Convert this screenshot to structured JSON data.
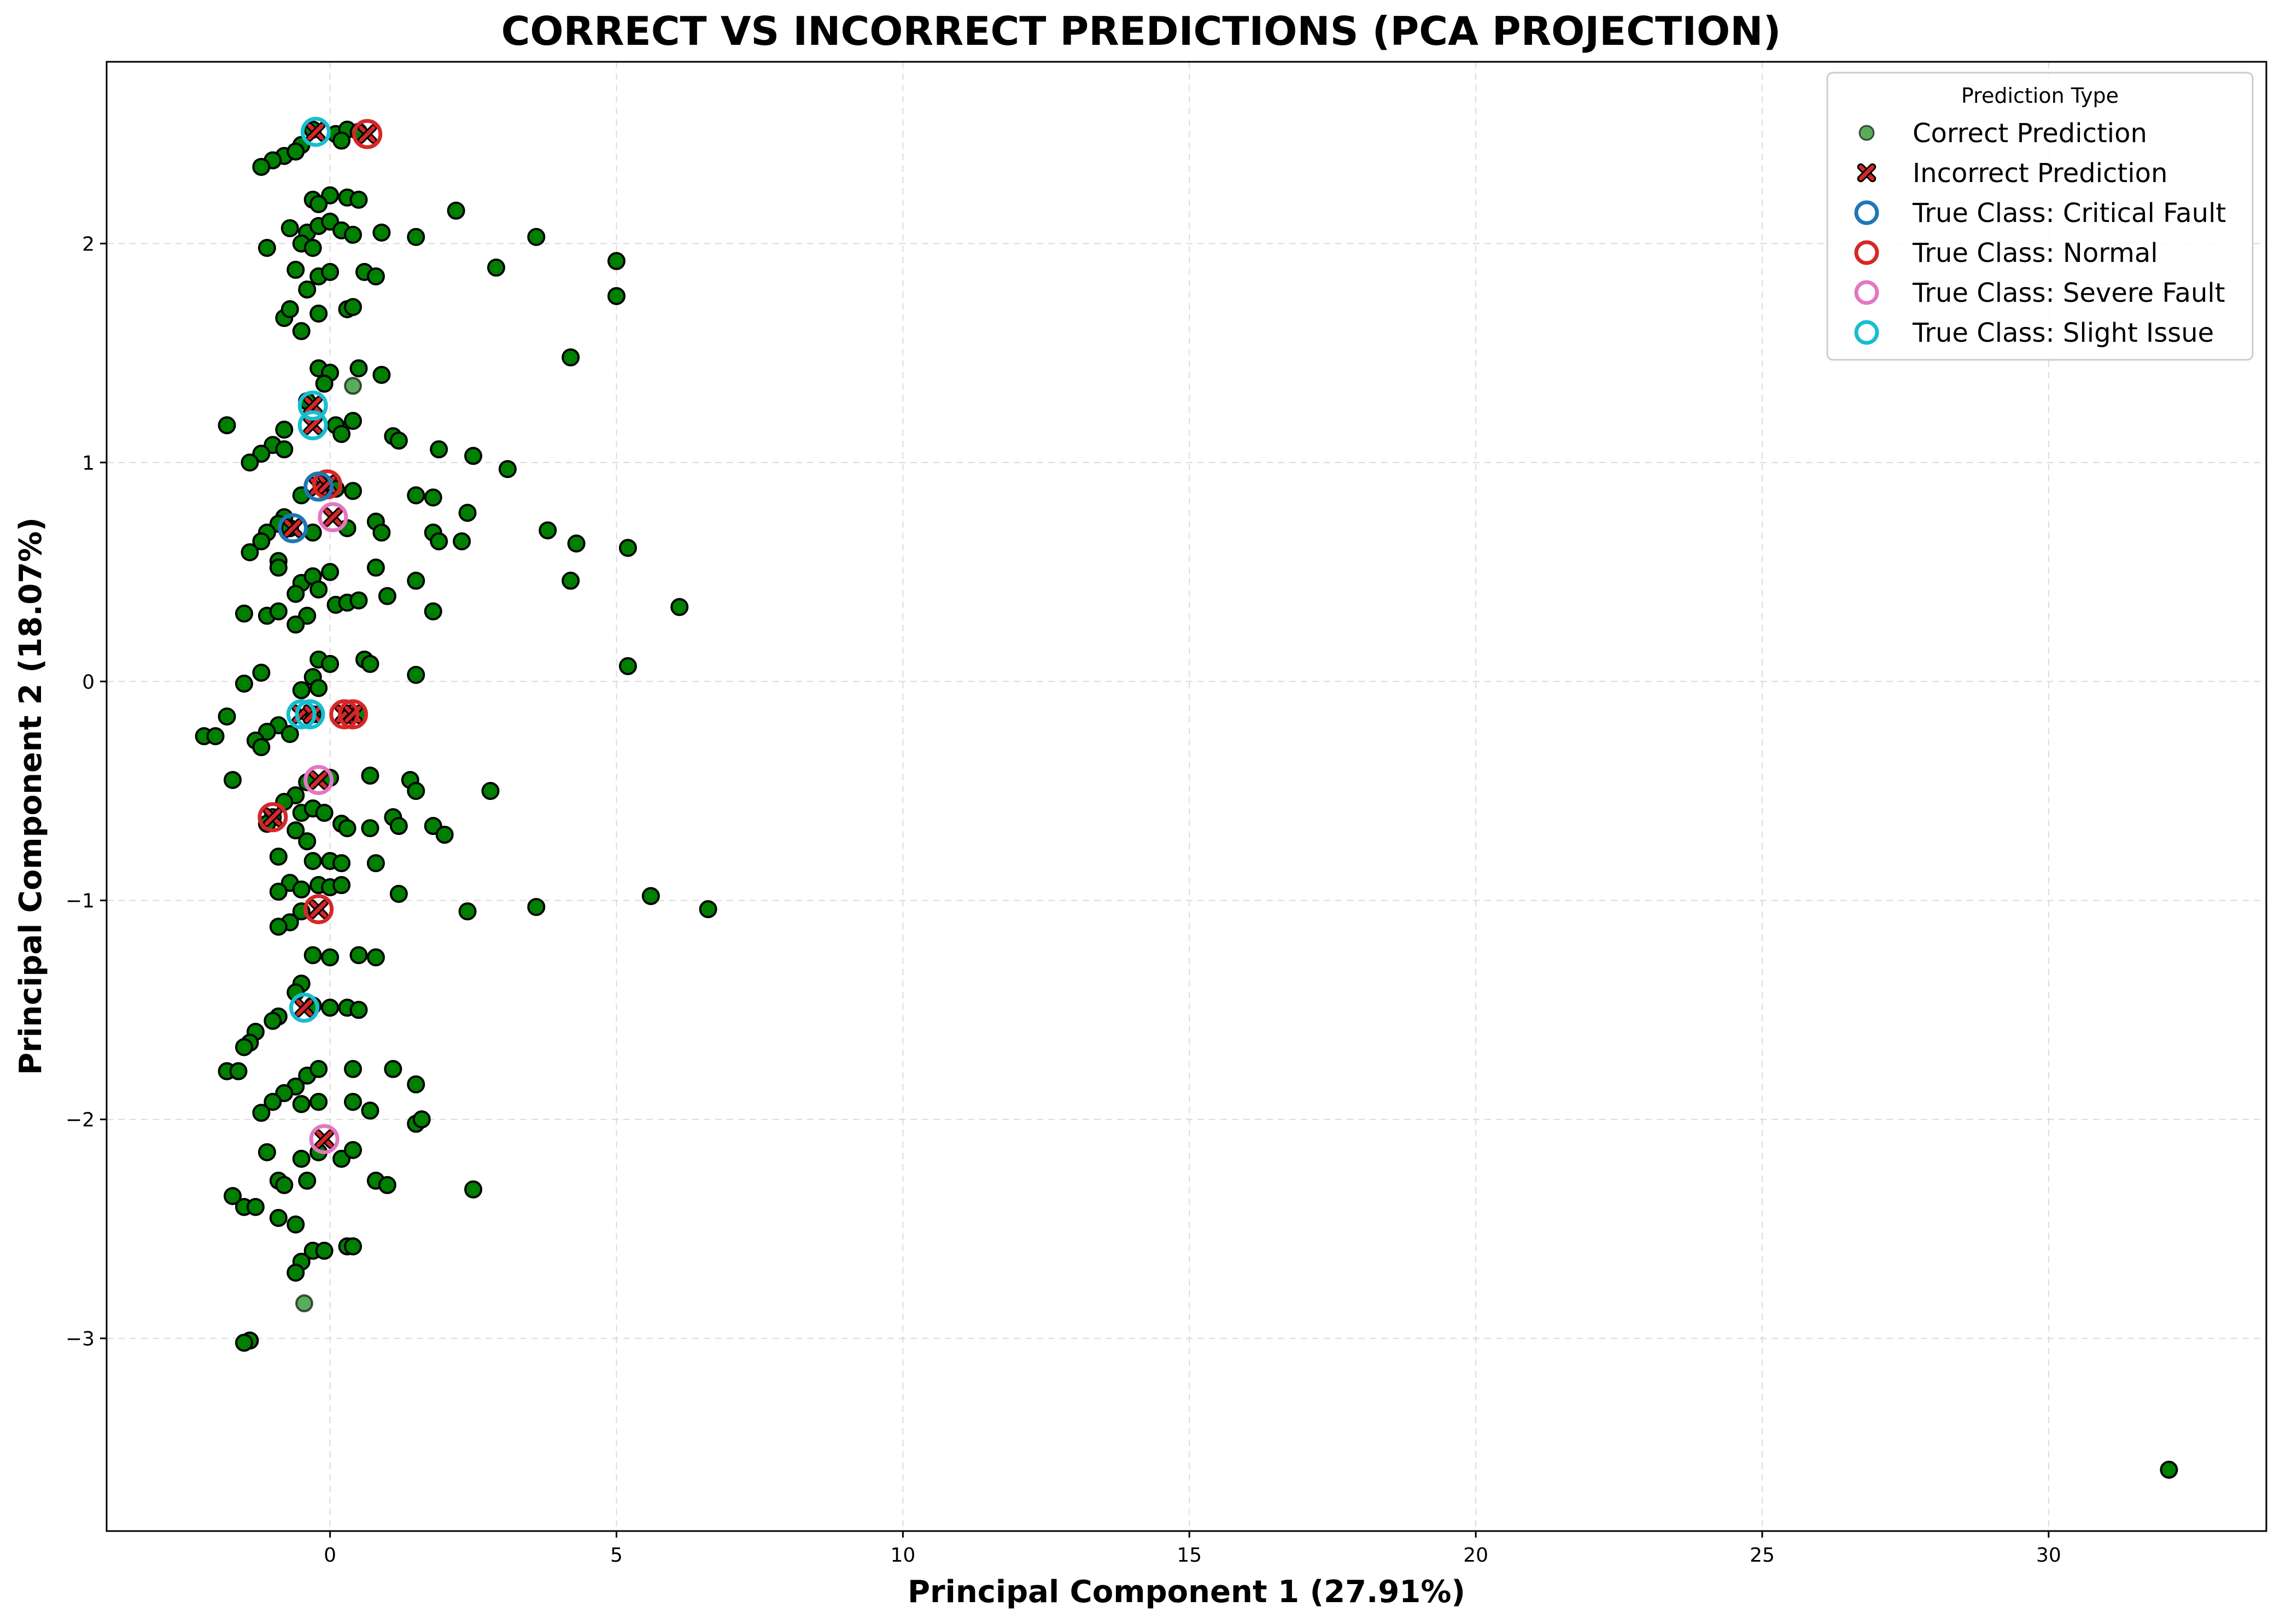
{
  "chart_data": {
    "type": "scatter",
    "title": "CORRECT VS INCORRECT PREDICTIONS (PCA PROJECTION)",
    "xlabel": "Principal Component 1 (27.91%)",
    "ylabel": "Principal Component 2 (18.07%)",
    "xlim": [
      -3.9,
      33.8
    ],
    "ylim": [
      -3.88,
      2.83
    ],
    "xticks": [
      0,
      5,
      10,
      15,
      20,
      25,
      30
    ],
    "yticks": [
      -3,
      -2,
      -1,
      0,
      1,
      2
    ],
    "ytick_labels": [
      "−3",
      "−2",
      "−1",
      "0",
      "1",
      "2"
    ],
    "grid": true,
    "legend": {
      "title": "Prediction Type",
      "placement": "top-right",
      "entries": [
        {
          "label": "Correct Prediction",
          "marker": "circle",
          "color": "#2e8b2e"
        },
        {
          "label": "Incorrect Prediction",
          "marker": "x",
          "color": "#d62728"
        },
        {
          "label": "True Class: Critical Fault",
          "marker": "ring",
          "color": "#1f77b4"
        },
        {
          "label": "True Class: Normal",
          "marker": "ring",
          "color": "#d62728"
        },
        {
          "label": "True Class: Severe Fault",
          "marker": "ring",
          "color": "#e377c2"
        },
        {
          "label": "True Class: Slight Issue",
          "marker": "ring",
          "color": "#17becf"
        }
      ]
    },
    "colors": {
      "correct_fill": "#008000",
      "correct_edge": "#000000",
      "incorrect": "#d62728",
      "critical_fault": "#1f77b4",
      "normal": "#d62728",
      "severe_fault": "#e377c2",
      "slight_issue": "#17becf"
    },
    "series": [
      {
        "name": "Correct Prediction",
        "points": [
          [
            -0.3,
            2.52
          ],
          [
            0.1,
            2.5
          ],
          [
            0.3,
            2.52
          ],
          [
            0.5,
            2.51
          ],
          [
            -0.5,
            2.45
          ],
          [
            0.2,
            2.47
          ],
          [
            -0.8,
            2.4
          ],
          [
            -1.0,
            2.38
          ],
          [
            -1.2,
            2.35
          ],
          [
            -0.6,
            2.42
          ],
          [
            -0.3,
            2.2
          ],
          [
            0.0,
            2.22
          ],
          [
            0.3,
            2.21
          ],
          [
            0.5,
            2.2
          ],
          [
            -0.2,
            2.18
          ],
          [
            -0.7,
            2.07
          ],
          [
            -0.4,
            2.05
          ],
          [
            -0.2,
            2.08
          ],
          [
            0.0,
            2.1
          ],
          [
            0.2,
            2.06
          ],
          [
            0.4,
            2.04
          ],
          [
            0.9,
            2.05
          ],
          [
            1.5,
            2.03
          ],
          [
            2.2,
            2.15
          ],
          [
            3.6,
            2.03
          ],
          [
            -1.1,
            1.98
          ],
          [
            -0.5,
            2.0
          ],
          [
            -0.3,
            1.98
          ],
          [
            5.0,
            1.92
          ],
          [
            2.9,
            1.89
          ],
          [
            -0.6,
            1.88
          ],
          [
            -0.2,
            1.85
          ],
          [
            0.0,
            1.87
          ],
          [
            0.6,
            1.87
          ],
          [
            0.8,
            1.85
          ],
          [
            5.0,
            1.76
          ],
          [
            -0.4,
            1.79
          ],
          [
            0.3,
            1.7
          ],
          [
            0.4,
            1.71
          ],
          [
            -0.8,
            1.66
          ],
          [
            -0.7,
            1.7
          ],
          [
            -0.2,
            1.68
          ],
          [
            -0.5,
            1.6
          ],
          [
            4.2,
            1.48
          ],
          [
            -0.2,
            1.43
          ],
          [
            0.0,
            1.41
          ],
          [
            0.5,
            1.43
          ],
          [
            0.9,
            1.4
          ],
          [
            -0.1,
            1.36
          ],
          [
            -0.4,
            1.28
          ],
          [
            -1.8,
            1.17
          ],
          [
            -0.8,
            1.15
          ],
          [
            0.1,
            1.17
          ],
          [
            0.4,
            1.19
          ],
          [
            0.2,
            1.13
          ],
          [
            1.1,
            1.12
          ],
          [
            1.2,
            1.1
          ],
          [
            -1.0,
            1.08
          ],
          [
            -0.8,
            1.06
          ],
          [
            -1.2,
            1.04
          ],
          [
            -1.4,
            1.0
          ],
          [
            1.9,
            1.06
          ],
          [
            2.5,
            1.03
          ],
          [
            3.1,
            0.97
          ],
          [
            -0.5,
            0.85
          ],
          [
            0.1,
            0.88
          ],
          [
            0.4,
            0.87
          ],
          [
            1.5,
            0.85
          ],
          [
            1.8,
            0.84
          ],
          [
            -0.8,
            0.75
          ],
          [
            -0.9,
            0.72
          ],
          [
            -1.1,
            0.68
          ],
          [
            -1.2,
            0.64
          ],
          [
            -1.4,
            0.59
          ],
          [
            -0.7,
            0.7
          ],
          [
            -0.3,
            0.68
          ],
          [
            0.3,
            0.7
          ],
          [
            0.8,
            0.73
          ],
          [
            0.9,
            0.68
          ],
          [
            1.8,
            0.68
          ],
          [
            1.9,
            0.64
          ],
          [
            2.3,
            0.64
          ],
          [
            2.4,
            0.77
          ],
          [
            3.8,
            0.69
          ],
          [
            4.3,
            0.63
          ],
          [
            5.2,
            0.61
          ],
          [
            -0.9,
            0.55
          ],
          [
            -0.9,
            0.52
          ],
          [
            -0.5,
            0.45
          ],
          [
            -0.3,
            0.48
          ],
          [
            0.0,
            0.5
          ],
          [
            0.8,
            0.52
          ],
          [
            -0.6,
            0.4
          ],
          [
            -0.2,
            0.42
          ],
          [
            0.1,
            0.35
          ],
          [
            0.3,
            0.36
          ],
          [
            0.5,
            0.37
          ],
          [
            1.0,
            0.39
          ],
          [
            1.5,
            0.46
          ],
          [
            1.8,
            0.32
          ],
          [
            4.2,
            0.46
          ],
          [
            6.1,
            0.34
          ],
          [
            -1.5,
            0.31
          ],
          [
            -1.1,
            0.3
          ],
          [
            -0.9,
            0.32
          ],
          [
            -0.4,
            0.3
          ],
          [
            -0.6,
            0.26
          ],
          [
            -0.2,
            0.1
          ],
          [
            0.0,
            0.08
          ],
          [
            0.6,
            0.1
          ],
          [
            0.7,
            0.08
          ],
          [
            1.5,
            0.03
          ],
          [
            5.2,
            0.07
          ],
          [
            -1.2,
            0.04
          ],
          [
            -0.3,
            0.02
          ],
          [
            -1.5,
            -0.01
          ],
          [
            -0.5,
            -0.04
          ],
          [
            -0.2,
            -0.03
          ],
          [
            -1.8,
            -0.16
          ],
          [
            -0.9,
            -0.2
          ],
          [
            -0.7,
            -0.24
          ],
          [
            -1.1,
            -0.23
          ],
          [
            -1.3,
            -0.27
          ],
          [
            -1.2,
            -0.3
          ],
          [
            -2.2,
            -0.25
          ],
          [
            -2.0,
            -0.25
          ],
          [
            -0.3,
            -0.15
          ],
          [
            0.5,
            -0.15
          ],
          [
            -0.4,
            -0.46
          ],
          [
            0.0,
            -0.44
          ],
          [
            0.7,
            -0.43
          ],
          [
            1.4,
            -0.45
          ],
          [
            1.5,
            -0.5
          ],
          [
            2.8,
            -0.5
          ],
          [
            -1.7,
            -0.45
          ],
          [
            -0.6,
            -0.52
          ],
          [
            -0.8,
            -0.55
          ],
          [
            -1.0,
            -0.62
          ],
          [
            -1.1,
            -0.65
          ],
          [
            -0.5,
            -0.6
          ],
          [
            -0.3,
            -0.58
          ],
          [
            -0.1,
            -0.6
          ],
          [
            0.2,
            -0.65
          ],
          [
            0.3,
            -0.67
          ],
          [
            0.7,
            -0.67
          ],
          [
            1.1,
            -0.62
          ],
          [
            1.2,
            -0.66
          ],
          [
            1.8,
            -0.66
          ],
          [
            2.0,
            -0.7
          ],
          [
            -0.6,
            -0.68
          ],
          [
            -0.4,
            -0.73
          ],
          [
            -0.9,
            -0.8
          ],
          [
            -0.3,
            -0.82
          ],
          [
            0.0,
            -0.82
          ],
          [
            0.2,
            -0.83
          ],
          [
            0.8,
            -0.83
          ],
          [
            -0.7,
            -0.92
          ],
          [
            -0.9,
            -0.96
          ],
          [
            -0.5,
            -0.95
          ],
          [
            -0.2,
            -0.93
          ],
          [
            0.0,
            -0.94
          ],
          [
            0.2,
            -0.93
          ],
          [
            1.2,
            -0.97
          ],
          [
            3.6,
            -1.03
          ],
          [
            5.6,
            -0.98
          ],
          [
            6.6,
            -1.04
          ],
          [
            2.4,
            -1.05
          ],
          [
            -0.5,
            -1.05
          ],
          [
            -0.7,
            -1.1
          ],
          [
            -0.9,
            -1.12
          ],
          [
            -0.3,
            -1.25
          ],
          [
            0.0,
            -1.26
          ],
          [
            0.5,
            -1.25
          ],
          [
            0.8,
            -1.26
          ],
          [
            -0.5,
            -1.38
          ],
          [
            -0.6,
            -1.42
          ],
          [
            -0.3,
            -1.48
          ],
          [
            0.0,
            -1.49
          ],
          [
            0.3,
            -1.49
          ],
          [
            0.5,
            -1.5
          ],
          [
            -0.9,
            -1.53
          ],
          [
            -1.0,
            -1.55
          ],
          [
            -1.3,
            -1.6
          ],
          [
            -1.4,
            -1.65
          ],
          [
            -1.5,
            -1.67
          ],
          [
            -1.8,
            -1.78
          ],
          [
            -1.6,
            -1.78
          ],
          [
            -0.6,
            -1.85
          ],
          [
            -0.4,
            -1.8
          ],
          [
            -0.2,
            -1.77
          ],
          [
            0.4,
            -1.77
          ],
          [
            1.1,
            -1.77
          ],
          [
            1.5,
            -1.84
          ],
          [
            -0.8,
            -1.88
          ],
          [
            -1.0,
            -1.92
          ],
          [
            -0.5,
            -1.93
          ],
          [
            -0.2,
            -1.92
          ],
          [
            0.4,
            -1.92
          ],
          [
            0.7,
            -1.96
          ],
          [
            1.5,
            -2.02
          ],
          [
            1.6,
            -2.0
          ],
          [
            -1.2,
            -1.97
          ],
          [
            -1.1,
            -2.15
          ],
          [
            -0.5,
            -2.18
          ],
          [
            -0.2,
            -2.15
          ],
          [
            0.2,
            -2.18
          ],
          [
            0.4,
            -2.14
          ],
          [
            -0.9,
            -2.28
          ],
          [
            -0.8,
            -2.3
          ],
          [
            -0.4,
            -2.28
          ],
          [
            0.8,
            -2.28
          ],
          [
            1.0,
            -2.3
          ],
          [
            2.5,
            -2.32
          ],
          [
            -1.7,
            -2.35
          ],
          [
            -1.5,
            -2.4
          ],
          [
            -1.3,
            -2.4
          ],
          [
            -0.9,
            -2.45
          ],
          [
            -0.6,
            -2.48
          ],
          [
            -0.3,
            -2.6
          ],
          [
            -0.1,
            -2.6
          ],
          [
            0.3,
            -2.58
          ],
          [
            0.4,
            -2.58
          ],
          [
            -0.5,
            -2.65
          ],
          [
            -0.6,
            -2.7
          ],
          [
            -1.4,
            -3.01
          ],
          [
            -1.5,
            -3.02
          ],
          [
            32.1,
            -3.6
          ]
        ]
      },
      {
        "name": "Correct Prediction",
        "opacity": 0.65,
        "points": [
          [
            0.4,
            1.35
          ],
          [
            -0.45,
            -2.84
          ]
        ]
      },
      {
        "name": "Incorrect Prediction",
        "points": [
          [
            -0.25,
            2.51
          ],
          [
            0.65,
            2.5
          ],
          [
            -0.3,
            1.26
          ],
          [
            -0.3,
            1.17
          ],
          [
            -0.2,
            0.89
          ],
          [
            -0.05,
            0.9
          ],
          [
            -0.65,
            0.7
          ],
          [
            0.05,
            0.75
          ],
          [
            -0.5,
            -0.15
          ],
          [
            -0.3,
            -0.15
          ],
          [
            0.25,
            -0.15
          ],
          [
            0.4,
            -0.15
          ],
          [
            -0.2,
            -0.45
          ],
          [
            -1.0,
            -0.62
          ],
          [
            -0.2,
            -1.04
          ],
          [
            -0.45,
            -1.49
          ],
          [
            -0.1,
            -2.09
          ]
        ]
      }
    ],
    "true_class_rings": [
      {
        "name": "True Class: Slight Issue",
        "points": [
          [
            -0.25,
            2.51
          ],
          [
            -0.3,
            1.26
          ],
          [
            -0.3,
            1.17
          ],
          [
            -0.35,
            -0.15
          ],
          [
            -0.5,
            -0.15
          ],
          [
            -0.45,
            -1.49
          ]
        ]
      },
      {
        "name": "True Class: Normal",
        "points": [
          [
            0.65,
            2.5
          ],
          [
            -0.05,
            0.9
          ],
          [
            0.25,
            -0.15
          ],
          [
            0.4,
            -0.15
          ],
          [
            -1.0,
            -0.62
          ],
          [
            -0.2,
            -1.04
          ]
        ]
      },
      {
        "name": "True Class: Critical Fault",
        "points": [
          [
            -0.2,
            0.89
          ],
          [
            -0.65,
            0.7
          ]
        ]
      },
      {
        "name": "True Class: Severe Fault",
        "points": [
          [
            0.05,
            0.75
          ],
          [
            -0.2,
            -0.45
          ],
          [
            -0.1,
            -2.09
          ]
        ]
      }
    ]
  }
}
